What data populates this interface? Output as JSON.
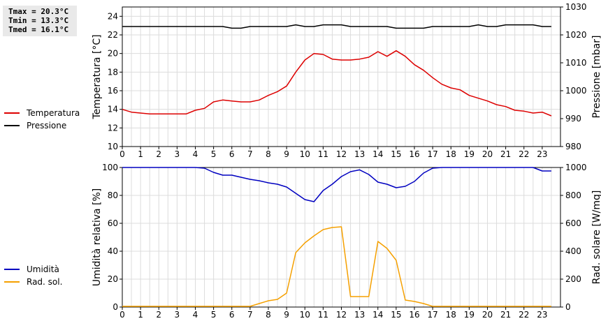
{
  "stats": {
    "tmax": "Tmax = 20.3°C",
    "tmin": "Tmin = 13.3°C",
    "tmed": "Tmed = 16.1°C"
  },
  "legend_top": [
    {
      "label": "Temperatura",
      "color": "#dd0000"
    },
    {
      "label": "Pressione",
      "color": "#000000"
    }
  ],
  "legend_bottom": [
    {
      "label": "Umidità",
      "color": "#0000c0"
    },
    {
      "label": "Rad. sol.",
      "color": "#f5a000"
    }
  ],
  "chart_data": [
    {
      "type": "line",
      "x_ticks": [
        "0",
        "1",
        "2",
        "3",
        "4",
        "5",
        "6",
        "7",
        "8",
        "9",
        "10",
        "11",
        "12",
        "13",
        "14",
        "15",
        "16",
        "17",
        "18",
        "19",
        "20",
        "21",
        "22",
        "23"
      ],
      "xlim": [
        0,
        24
      ],
      "ylabel_left": "Temperatura [°C]",
      "ylim_left": [
        10,
        25
      ],
      "yticks_left": [
        10,
        12,
        14,
        16,
        18,
        20,
        22,
        24
      ],
      "ylabel_right": "Pressione [mbar]",
      "ylim_right": [
        980,
        1030
      ],
      "yticks_right": [
        980,
        990,
        1000,
        1010,
        1020,
        1030
      ],
      "grid": true,
      "series": [
        {
          "name": "Temperatura",
          "axis": "left",
          "color": "#dd0000",
          "x": [
            0,
            0.5,
            1,
            1.5,
            2,
            2.5,
            3,
            3.5,
            4,
            4.5,
            5,
            5.5,
            6,
            6.5,
            7,
            7.5,
            8,
            8.5,
            9,
            9.5,
            10,
            10.5,
            11,
            11.5,
            12,
            12.5,
            13,
            13.5,
            14,
            14.5,
            15,
            15.5,
            16,
            16.5,
            17,
            17.5,
            18,
            18.5,
            19,
            19.5,
            20,
            20.5,
            21,
            21.5,
            22,
            22.5,
            23,
            23.5
          ],
          "values": [
            14.0,
            13.7,
            13.6,
            13.5,
            13.5,
            13.5,
            13.5,
            13.5,
            13.9,
            14.1,
            14.8,
            15.0,
            14.9,
            14.8,
            14.8,
            15.0,
            15.5,
            15.9,
            16.5,
            18.0,
            19.3,
            20.0,
            19.9,
            19.4,
            19.3,
            19.3,
            19.4,
            19.6,
            20.2,
            19.7,
            20.3,
            19.7,
            18.8,
            18.2,
            17.4,
            16.7,
            16.3,
            16.1,
            15.5,
            15.2,
            14.9,
            14.5,
            14.3,
            13.9,
            13.8,
            13.6,
            13.7,
            13.3
          ]
        },
        {
          "name": "Pressione",
          "axis": "right",
          "color": "#000000",
          "x": [
            0,
            0.5,
            1,
            1.5,
            2,
            2.5,
            3,
            3.5,
            4,
            4.5,
            5,
            5.5,
            6,
            6.5,
            7,
            7.5,
            8,
            8.5,
            9,
            9.5,
            10,
            10.5,
            11,
            11.5,
            12,
            12.5,
            13,
            13.5,
            14,
            14.5,
            15,
            15.5,
            16,
            16.5,
            17,
            17.5,
            18,
            18.5,
            19,
            19.5,
            20,
            20.5,
            21,
            21.5,
            22,
            22.5,
            23,
            23.5
          ],
          "values": [
            1023,
            1023,
            1023,
            1023,
            1023,
            1023,
            1023,
            1023,
            1023,
            1023,
            1023,
            1023,
            1022.4,
            1022.4,
            1023,
            1023,
            1023,
            1023,
            1023,
            1023.6,
            1023,
            1023,
            1023.6,
            1023.6,
            1023.6,
            1023,
            1023,
            1023,
            1023,
            1023,
            1022.4,
            1022.4,
            1022.4,
            1022.4,
            1023,
            1023,
            1023,
            1023,
            1023,
            1023.6,
            1023,
            1023,
            1023.6,
            1023.6,
            1023.6,
            1023.6,
            1023,
            1023
          ]
        }
      ]
    },
    {
      "type": "line",
      "x_ticks": [
        "0",
        "1",
        "2",
        "3",
        "4",
        "5",
        "6",
        "7",
        "8",
        "9",
        "10",
        "11",
        "12",
        "13",
        "14",
        "15",
        "16",
        "17",
        "18",
        "19",
        "20",
        "21",
        "22",
        "23"
      ],
      "xlim": [
        0,
        24
      ],
      "ylabel_left": "Umidità relativa [%]",
      "ylim_left": [
        0,
        100
      ],
      "yticks_left": [
        0,
        20,
        40,
        60,
        80,
        100
      ],
      "ylabel_right": "Rad. solare [W/mq]",
      "ylim_right": [
        0,
        1000
      ],
      "yticks_right": [
        0,
        200,
        400,
        600,
        800,
        1000
      ],
      "grid": true,
      "series": [
        {
          "name": "Umidità",
          "axis": "left",
          "color": "#0000c0",
          "x": [
            0,
            0.5,
            1,
            1.5,
            2,
            2.5,
            3,
            3.5,
            4,
            4.5,
            5,
            5.5,
            6,
            6.5,
            7,
            7.5,
            8,
            8.5,
            9,
            9.5,
            10,
            10.5,
            11,
            11.5,
            12,
            12.5,
            13,
            13.5,
            14,
            14.5,
            15,
            15.5,
            16,
            16.5,
            17,
            17.5,
            18,
            18.5,
            19,
            19.5,
            20,
            20.5,
            21,
            21.5,
            22,
            22.5,
            23,
            23.5
          ],
          "values": [
            100,
            100,
            100,
            100,
            100,
            100,
            100,
            100,
            100,
            99.5,
            96.5,
            94.5,
            94.5,
            93,
            91.5,
            90.5,
            89,
            88,
            86,
            81.5,
            77,
            75.5,
            83.5,
            88,
            93.5,
            97,
            98.3,
            95,
            89.5,
            88,
            85.5,
            86.5,
            90,
            96,
            99.5,
            100,
            100,
            100,
            100,
            100,
            100,
            100,
            100,
            100,
            100,
            100,
            97.5,
            97.5
          ]
        },
        {
          "name": "Rad. sol.",
          "axis": "right",
          "color": "#f5a000",
          "x": [
            0,
            0.5,
            1,
            1.5,
            2,
            2.5,
            3,
            3.5,
            4,
            4.5,
            5,
            5.5,
            6,
            6.5,
            7,
            7.5,
            8,
            8.5,
            9,
            9.5,
            10,
            10.5,
            11,
            11.5,
            12,
            12.5,
            13,
            13.5,
            14,
            14.5,
            15,
            15.5,
            16,
            16.5,
            17,
            17.5,
            18,
            18.5,
            19,
            19.5,
            20,
            20.5,
            21,
            21.5,
            22,
            22.5,
            23,
            23.5
          ],
          "values": [
            5,
            5,
            5,
            5,
            5,
            5,
            5,
            5,
            5,
            5,
            5,
            5,
            5,
            5,
            5,
            25,
            45,
            55,
            100,
            390,
            460,
            510,
            555,
            570,
            575,
            75,
            75,
            75,
            470,
            420,
            335,
            50,
            40,
            25,
            5,
            5,
            5,
            5,
            5,
            5,
            5,
            5,
            5,
            5,
            5,
            5,
            5,
            5
          ]
        }
      ]
    }
  ]
}
